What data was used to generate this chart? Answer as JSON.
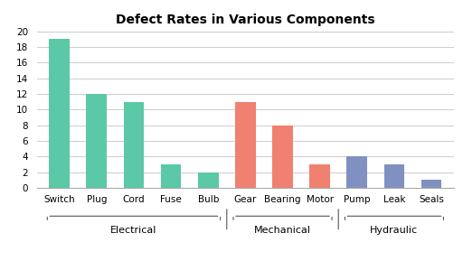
{
  "title": "Defect Rates in Various Components",
  "bars": [
    {
      "label": "Switch",
      "value": 19,
      "color": "#5BC8A8",
      "group": "Electrical"
    },
    {
      "label": "Plug",
      "value": 12,
      "color": "#5BC8A8",
      "group": "Electrical"
    },
    {
      "label": "Cord",
      "value": 11,
      "color": "#5BC8A8",
      "group": "Electrical"
    },
    {
      "label": "Fuse",
      "value": 3,
      "color": "#5BC8A8",
      "group": "Electrical"
    },
    {
      "label": "Bulb",
      "value": 2,
      "color": "#5BC8A8",
      "group": "Electrical"
    },
    {
      "label": "Gear",
      "value": 11,
      "color": "#F08070",
      "group": "Mechanical"
    },
    {
      "label": "Bearing",
      "value": 8,
      "color": "#F08070",
      "group": "Mechanical"
    },
    {
      "label": "Motor",
      "value": 3,
      "color": "#F08070",
      "group": "Mechanical"
    },
    {
      "label": "Pump",
      "value": 4,
      "color": "#8090C0",
      "group": "Hydraulic"
    },
    {
      "label": "Leak",
      "value": 3,
      "color": "#8090C0",
      "group": "Hydraulic"
    },
    {
      "label": "Seals",
      "value": 1,
      "color": "#8090C0",
      "group": "Hydraulic"
    }
  ],
  "groups": [
    {
      "name": "Electrical",
      "indices": [
        0,
        1,
        2,
        3,
        4
      ]
    },
    {
      "name": "Mechanical",
      "indices": [
        5,
        6,
        7
      ]
    },
    {
      "name": "Hydraulic",
      "indices": [
        8,
        9,
        10
      ]
    }
  ],
  "ylim": [
    0,
    20
  ],
  "yticks": [
    0,
    2,
    4,
    6,
    8,
    10,
    12,
    14,
    16,
    18,
    20
  ],
  "bg_color": "#FFFFFF",
  "grid_color": "#CCCCCC",
  "title_fontsize": 10,
  "bar_width": 0.55,
  "group_label_fontsize": 8,
  "tick_label_fontsize": 7.5
}
